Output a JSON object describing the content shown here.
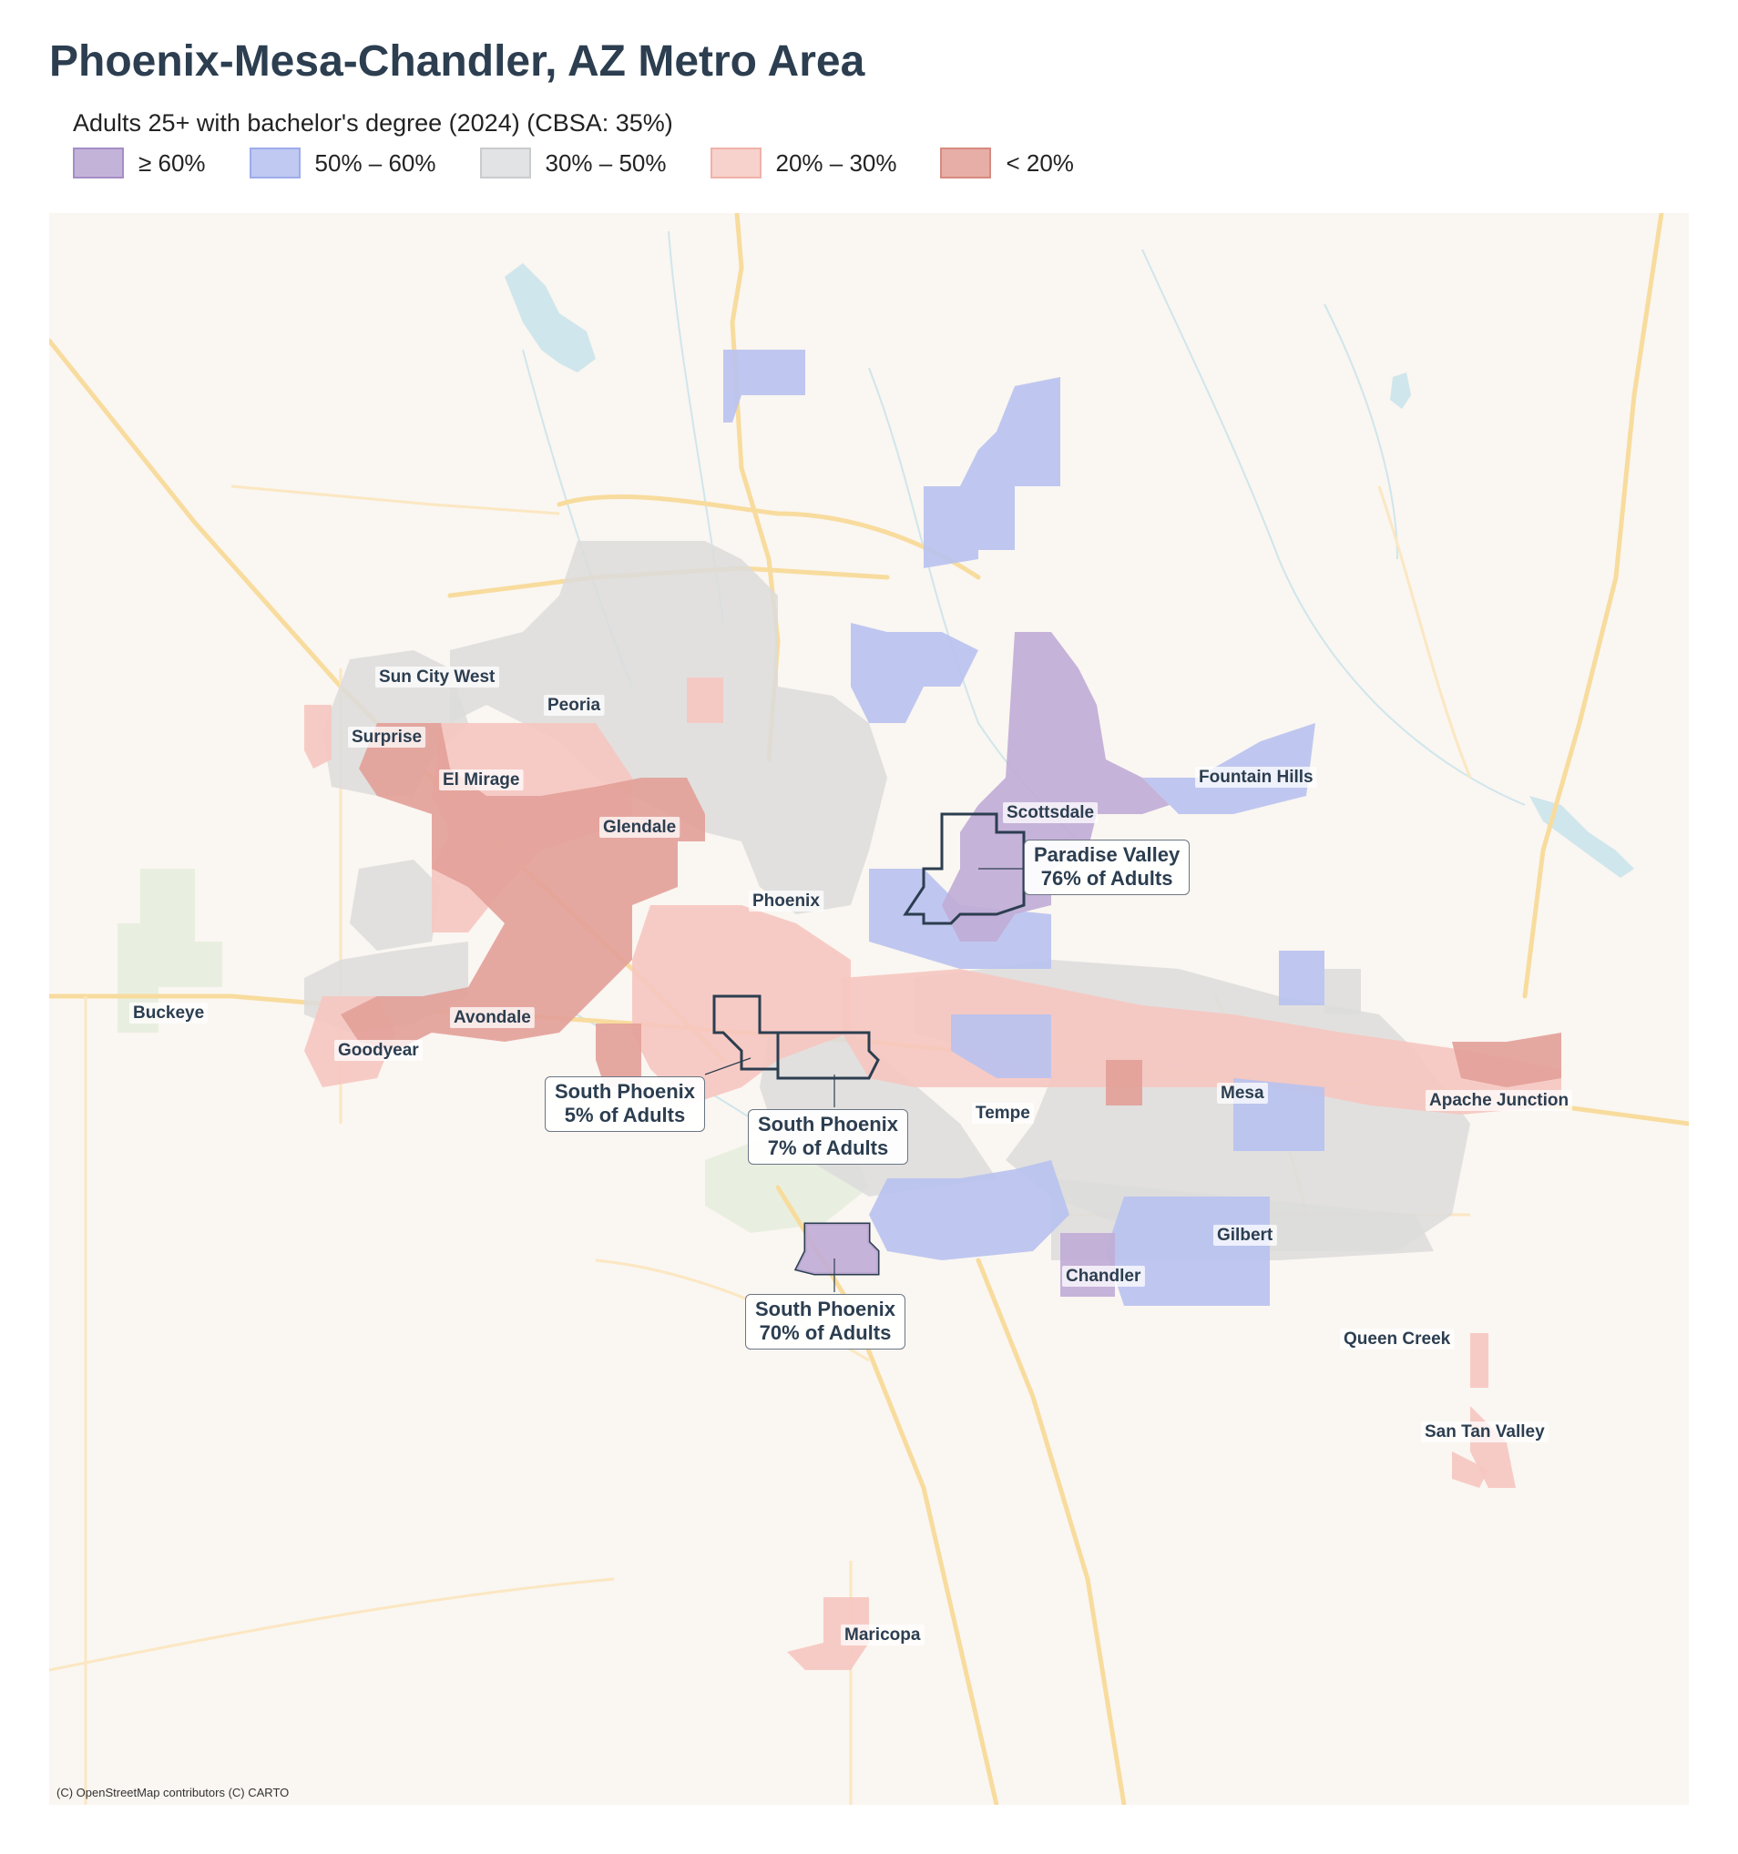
{
  "title": "Phoenix-Mesa-Chandler, AZ Metro Area",
  "subtitle": "Adults 25+ with bachelor's degree (2024)  (CBSA: 35%)",
  "legend": [
    {
      "label": "≥ 60%",
      "fill": "#c3b3d9",
      "stroke": "#a58ec6"
    },
    {
      "label": "50% – 60%",
      "fill": "#c0c9f2",
      "stroke": "#9eaceb"
    },
    {
      "label": "30% – 50%",
      "fill": "#e1e3e4",
      "stroke": "#c9cccd"
    },
    {
      "label": "20% – 30%",
      "fill": "#f7d1cc",
      "stroke": "#f0b2aa"
    },
    {
      "label": "< 20%",
      "fill": "#e6aea7",
      "stroke": "#d88a80"
    }
  ],
  "cities": [
    {
      "name": "Sun City West"
    },
    {
      "name": "Peoria"
    },
    {
      "name": "Surprise"
    },
    {
      "name": "El Mirage"
    },
    {
      "name": "Glendale"
    },
    {
      "name": "Fountain Hills"
    },
    {
      "name": "Scottsdale"
    },
    {
      "name": "Phoenix"
    },
    {
      "name": "Buckeye"
    },
    {
      "name": "Avondale"
    },
    {
      "name": "Goodyear"
    },
    {
      "name": "Tempe"
    },
    {
      "name": "Mesa"
    },
    {
      "name": "Apache Junction"
    },
    {
      "name": "Gilbert"
    },
    {
      "name": "Chandler"
    },
    {
      "name": "Queen Creek"
    },
    {
      "name": "San Tan Valley"
    },
    {
      "name": "Maricopa"
    }
  ],
  "callouts": [
    {
      "name": "Paradise Valley",
      "value": "76% of Adults"
    },
    {
      "name": "South Phoenix",
      "value": "5% of Adults"
    },
    {
      "name": "South Phoenix",
      "value": "7% of Adults"
    },
    {
      "name": "South Phoenix",
      "value": "70% of Adults"
    }
  ],
  "attribution": "(C) OpenStreetMap contributors (C) CARTO"
}
